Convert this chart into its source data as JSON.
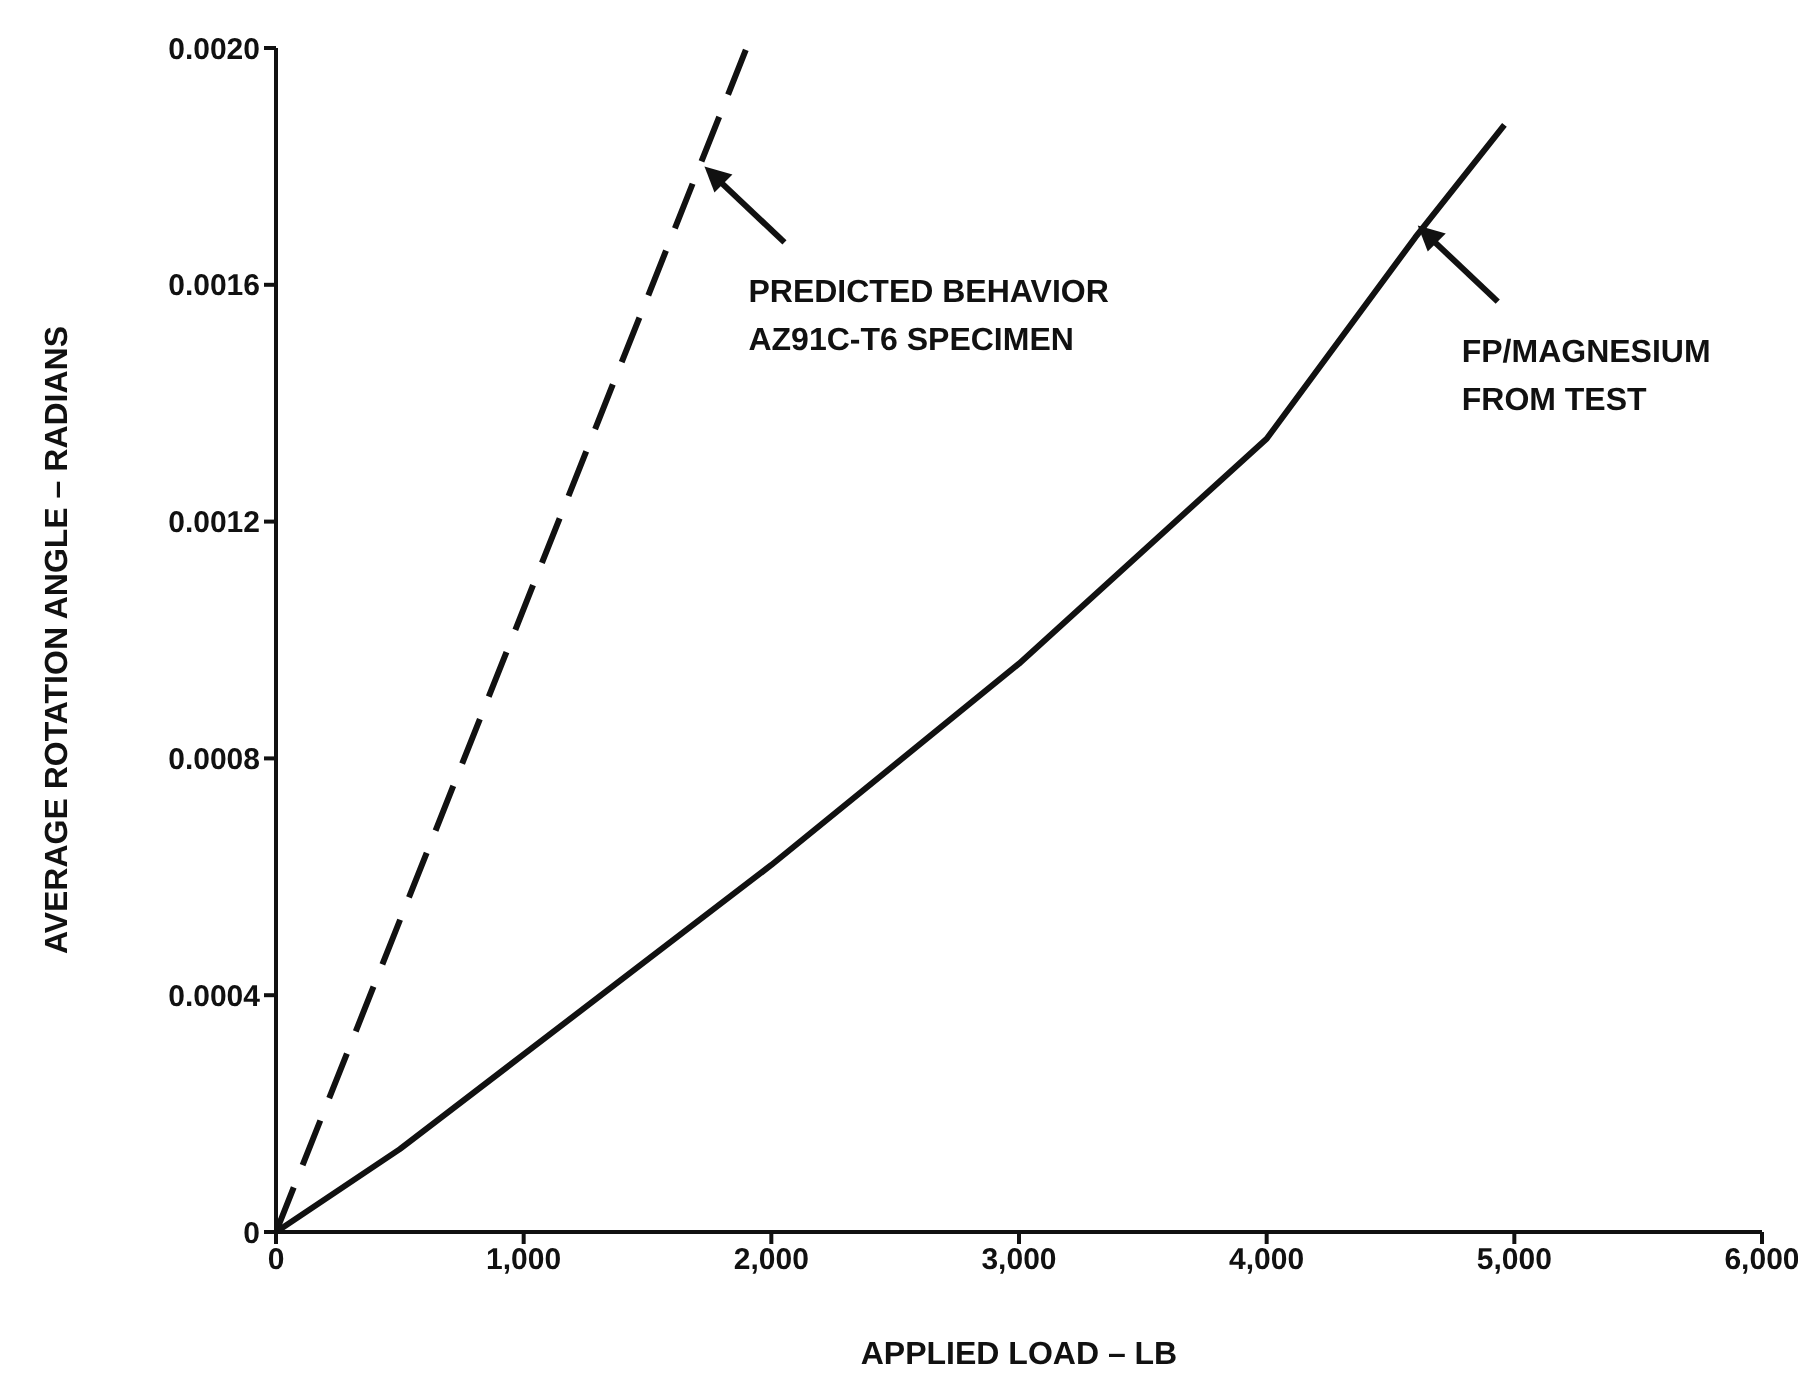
{
  "chart_data": {
    "type": "line",
    "xlabel": "APPLIED LOAD – LB",
    "ylabel": "AVERAGE ROTATION ANGLE – RADIANS",
    "xlim": [
      0,
      6000
    ],
    "xticks": [
      0,
      {
        "value": 1000,
        "label": "1,000"
      },
      {
        "value": 2000,
        "label": "2,000"
      },
      {
        "value": 3000,
        "label": "3,000"
      },
      {
        "value": 4000,
        "label": "4,000"
      },
      {
        "value": 5000,
        "label": "5,000"
      },
      {
        "value": 6000,
        "label": "6,000"
      }
    ],
    "ylim": [
      0,
      0.002
    ],
    "yticks": [
      0,
      {
        "value": 0.0004,
        "label": "0.0004"
      },
      {
        "value": 0.0008,
        "label": "0.0008"
      },
      {
        "value": 0.0012,
        "label": "0.0012"
      },
      {
        "value": 0.0016,
        "label": "0.0016"
      },
      {
        "value": 0.002,
        "label": "0.0020"
      }
    ],
    "grid": false,
    "marker": "none",
    "series": [
      {
        "color": "#111111",
        "line_style": "dashed",
        "x": [
          0,
          1900
        ],
        "values": [
          0,
          0.002
        ]
      },
      {
        "color": "#111111",
        "line_style": "solid",
        "x": [
          0,
          500,
          1000,
          2000,
          3000,
          4000,
          4600,
          4960
        ],
        "values": [
          0,
          0.00014,
          0.0003,
          0.00062,
          0.00096,
          0.00134,
          0.00168,
          0.00187
        ]
      }
    ],
    "annotations": [
      {
        "text": "PREDICTED BEHAVIOR\nAZ91C-T6 SPECIMEN",
        "x": 1730,
        "y": 0.0018
      },
      {
        "text": "FP/MAGNESIUM\nFROM TEST",
        "x": 4610,
        "y": 0.0017
      }
    ]
  }
}
